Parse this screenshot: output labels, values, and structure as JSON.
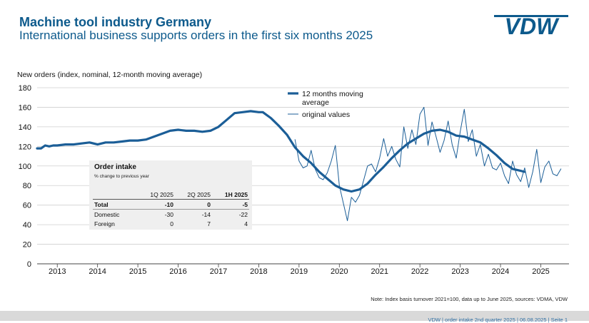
{
  "header": {
    "title": "Machine tool industry Germany",
    "subtitle": "International business supports orders in the first six months 2025",
    "logo_text": "VDW"
  },
  "colors": {
    "brand": "#0d5a8c",
    "series": "#1b5e97",
    "grid": "#cfcfcf",
    "footer_bg": "#d9d9d9"
  },
  "chart_data": {
    "type": "line",
    "ylabel": "New orders (index, nominal, 12-month moving average)",
    "ylim": [
      0,
      180
    ],
    "yticks": [
      0,
      20,
      40,
      60,
      80,
      100,
      120,
      140,
      160,
      180
    ],
    "xlim": [
      2012.5,
      2025.7
    ],
    "x_ticks": [
      2013,
      2014,
      2015,
      2016,
      2017,
      2018,
      2019,
      2020,
      2021,
      2022,
      2023,
      2024,
      2025
    ],
    "x_tick_labels": [
      "2013",
      "2014",
      "2015",
      "2016",
      "2017",
      "2018",
      "2019",
      "2020",
      "2021",
      "2022",
      "2023",
      "2024",
      "2025"
    ],
    "legend": [
      "12 months moving average",
      "original values"
    ],
    "legend_position": "top-middle",
    "series": [
      {
        "name": "12 months moving average",
        "x": [
          2012.5,
          2012.6,
          2012.7,
          2012.8,
          2012.9,
          2013.0,
          2013.2,
          2013.4,
          2013.6,
          2013.8,
          2014.0,
          2014.2,
          2014.4,
          2014.6,
          2014.8,
          2015.0,
          2015.2,
          2015.4,
          2015.6,
          2015.8,
          2016.0,
          2016.2,
          2016.4,
          2016.6,
          2016.8,
          2017.0,
          2017.2,
          2017.4,
          2017.6,
          2017.8,
          2018.0,
          2018.1,
          2018.3,
          2018.5,
          2018.7,
          2018.9,
          2019.1,
          2019.3,
          2019.5,
          2019.7,
          2019.9,
          2020.1,
          2020.3,
          2020.5,
          2020.7,
          2020.9,
          2021.1,
          2021.3,
          2021.5,
          2021.7,
          2021.9,
          2022.1,
          2022.3,
          2022.5,
          2022.7,
          2022.9,
          2023.1,
          2023.3,
          2023.5,
          2023.7,
          2023.9,
          2024.1,
          2024.3,
          2024.5,
          2024.6
        ],
        "values": [
          118,
          118,
          121,
          120,
          121,
          121,
          122,
          122,
          123,
          124,
          122,
          124,
          124,
          125,
          126,
          126,
          127,
          130,
          133,
          136,
          137,
          136,
          136,
          135,
          136,
          140,
          147,
          154,
          155,
          156,
          155,
          155,
          149,
          141,
          132,
          119,
          110,
          103,
          94,
          87,
          80,
          76,
          74,
          76,
          82,
          91,
          99,
          108,
          116,
          123,
          128,
          133,
          136,
          137,
          135,
          131,
          130,
          127,
          124,
          118,
          111,
          103,
          97,
          95,
          94
        ],
        "color": "#1b5e97",
        "stroke": "thick"
      },
      {
        "name": "original values",
        "x": [
          2018.9,
          2019.0,
          2019.1,
          2019.2,
          2019.3,
          2019.4,
          2019.5,
          2019.6,
          2019.7,
          2019.8,
          2019.9,
          2020.0,
          2020.1,
          2020.2,
          2020.3,
          2020.4,
          2020.5,
          2020.6,
          2020.7,
          2020.8,
          2020.9,
          2021.0,
          2021.1,
          2021.2,
          2021.3,
          2021.4,
          2021.5,
          2021.6,
          2021.7,
          2021.8,
          2021.9,
          2022.0,
          2022.1,
          2022.2,
          2022.3,
          2022.4,
          2022.5,
          2022.6,
          2022.7,
          2022.8,
          2022.9,
          2023.0,
          2023.1,
          2023.2,
          2023.3,
          2023.4,
          2023.5,
          2023.6,
          2023.7,
          2023.8,
          2023.9,
          2024.0,
          2024.1,
          2024.2,
          2024.3,
          2024.4,
          2024.5,
          2024.6,
          2024.7,
          2024.8,
          2024.9,
          2025.0,
          2025.1,
          2025.2,
          2025.3,
          2025.4,
          2025.5
        ],
        "values": [
          127,
          105,
          98,
          100,
          116,
          97,
          88,
          86,
          93,
          105,
          121,
          80,
          62,
          44,
          68,
          63,
          70,
          85,
          100,
          102,
          94,
          108,
          128,
          110,
          120,
          107,
          99,
          140,
          118,
          137,
          122,
          153,
          160,
          121,
          145,
          130,
          114,
          126,
          146,
          122,
          108,
          135,
          158,
          125,
          137,
          110,
          122,
          100,
          112,
          98,
          96,
          103,
          90,
          82,
          105,
          91,
          84,
          98,
          78,
          94,
          117,
          83,
          99,
          105,
          92,
          90,
          97
        ],
        "color": "#1b5e97",
        "stroke": "thin"
      }
    ]
  },
  "order_intake": {
    "title": "Order intake",
    "subtitle": "% change to previous year",
    "columns": [
      "",
      "1Q 2025",
      "2Q 2025",
      "1H 2025"
    ],
    "rows": [
      {
        "label": "Total",
        "q1": "-10",
        "q2": "0",
        "h1": "-5"
      },
      {
        "label": "Domestic",
        "q1": "-30",
        "q2": "-14",
        "h1": "-22"
      },
      {
        "label": "Foreign",
        "q1": "0",
        "q2": "7",
        "h1": "4"
      }
    ]
  },
  "note": "Note: Index basis turnover 2021=100, data up to June 2025, sources: VDMA, VDW",
  "footer": {
    "text": "VDW  |  order intake 2nd quarter 2025  |  06.08.2025  |  Seite  1"
  }
}
